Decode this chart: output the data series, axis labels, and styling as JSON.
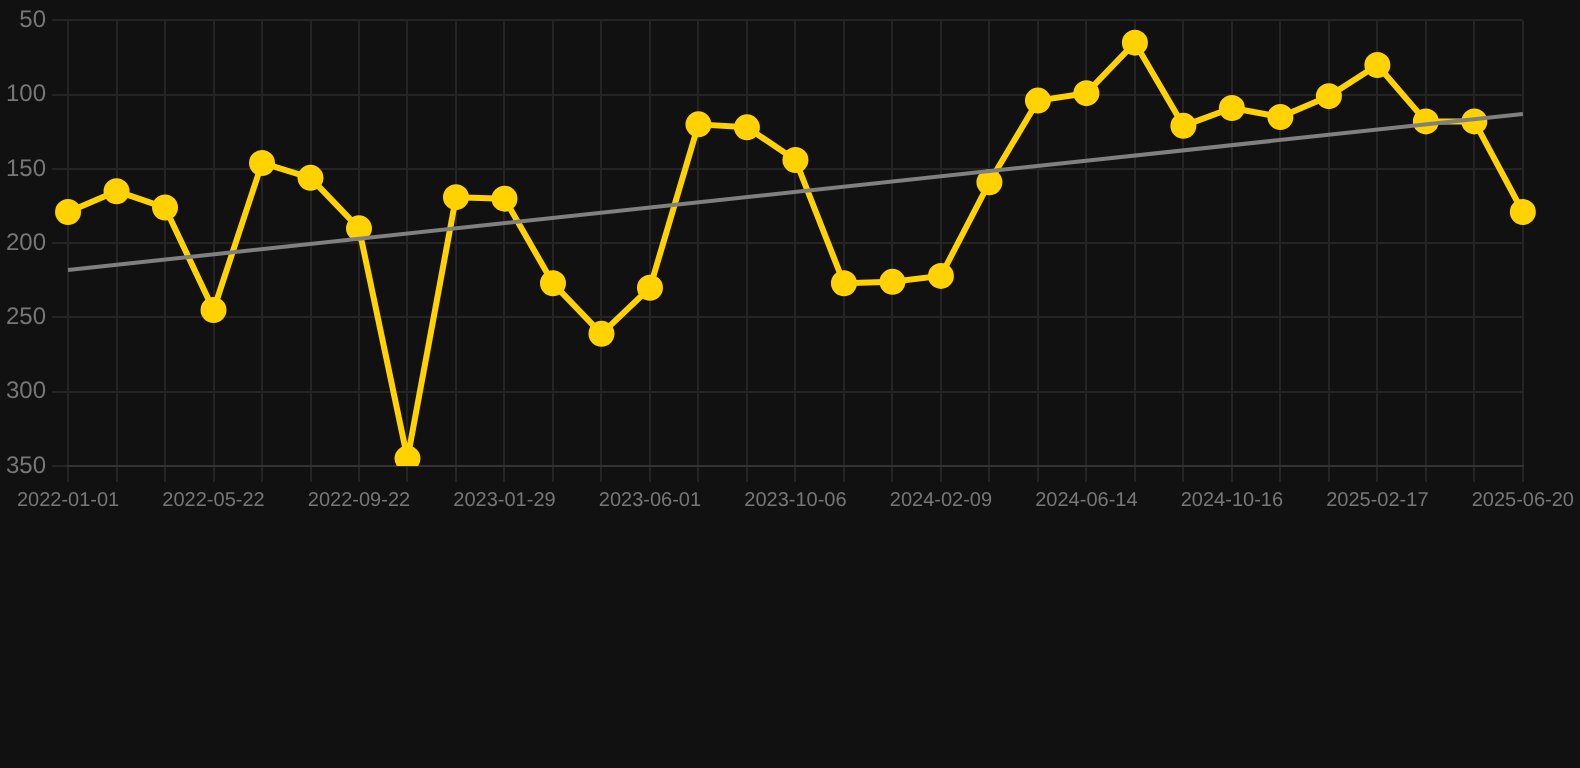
{
  "chart_data": {
    "type": "line",
    "categories": [
      "2022-01-01",
      null,
      null,
      "2022-05-22",
      null,
      null,
      "2022-09-22",
      null,
      null,
      "2023-01-29",
      null,
      null,
      "2023-06-01",
      null,
      null,
      "2023-10-06",
      null,
      null,
      "2024-02-09",
      null,
      null,
      "2024-06-14",
      null,
      null,
      "2024-10-16",
      null,
      null,
      "2025-02-17",
      null,
      null,
      "2025-06-20"
    ],
    "series": [
      {
        "color": "#ffd200",
        "marker": "circle",
        "values": [
          179,
          165,
          176,
          245,
          146,
          156,
          190,
          345,
          169,
          170,
          227,
          261,
          230,
          120,
          122,
          144,
          227,
          226,
          222,
          159,
          104,
          99,
          65,
          121,
          109,
          115,
          101,
          80,
          118,
          118,
          179
        ]
      },
      {
        "color": "#808080",
        "marker": "none",
        "values": [
          218,
          null,
          null,
          null,
          null,
          null,
          null,
          null,
          null,
          null,
          null,
          null,
          null,
          null,
          null,
          null,
          null,
          null,
          null,
          null,
          null,
          null,
          null,
          null,
          null,
          null,
          null,
          null,
          null,
          null,
          113
        ]
      }
    ],
    "ylim": [
      350,
      50
    ],
    "yticks": [
      50,
      100,
      150,
      200,
      250,
      300,
      350
    ],
    "grid": true,
    "legend": false
  }
}
